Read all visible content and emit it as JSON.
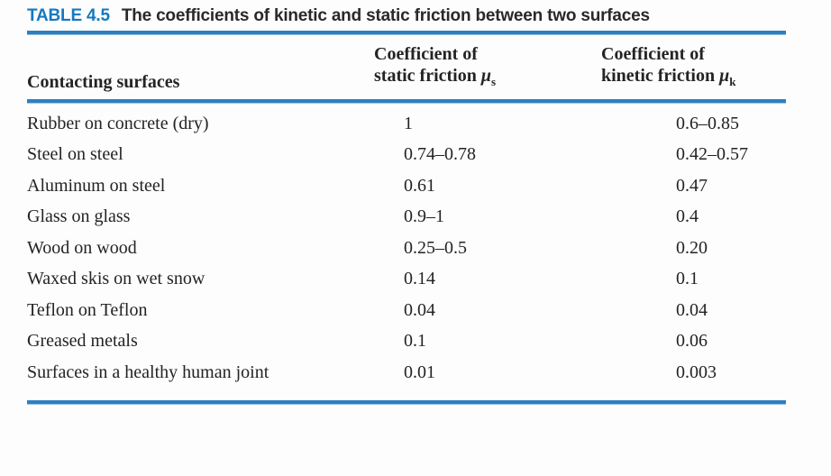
{
  "title": {
    "label": "TABLE 4.5",
    "text": "The coefficients of kinetic and static friction between two surfaces"
  },
  "colors": {
    "accent_blue": "#2e7fc0",
    "table_label_blue": "#1579c0",
    "text": "#232323"
  },
  "table": {
    "header": {
      "col1": "Contacting surfaces",
      "col2": {
        "line1": "Coefficient of",
        "line2": "static friction",
        "symbol": "μ",
        "subscript": "s"
      },
      "col3": {
        "line1": "Coefficient of",
        "line2": "kinetic friction",
        "symbol": "μ",
        "subscript": "k"
      }
    },
    "rows": [
      {
        "surface": "Rubber on concrete (dry)",
        "static": "1",
        "kinetic": "0.6–0.85"
      },
      {
        "surface": "Steel on steel",
        "static": "0.74–0.78",
        "kinetic": "0.42–0.57"
      },
      {
        "surface": "Aluminum on steel",
        "static": "0.61",
        "kinetic": "0.47"
      },
      {
        "surface": "Glass on glass",
        "static": "0.9–1",
        "kinetic": "0.4"
      },
      {
        "surface": "Wood on wood",
        "static": "0.25–0.5",
        "kinetic": "0.20"
      },
      {
        "surface": "Waxed skis on wet snow",
        "static": "0.14",
        "kinetic": "0.1"
      },
      {
        "surface": "Teflon on Teflon",
        "static": "0.04",
        "kinetic": "0.04"
      },
      {
        "surface": "Greased metals",
        "static": "0.1",
        "kinetic": "0.06"
      },
      {
        "surface": "Surfaces in a healthy human joint",
        "static": "0.01",
        "kinetic": "0.003"
      }
    ]
  }
}
